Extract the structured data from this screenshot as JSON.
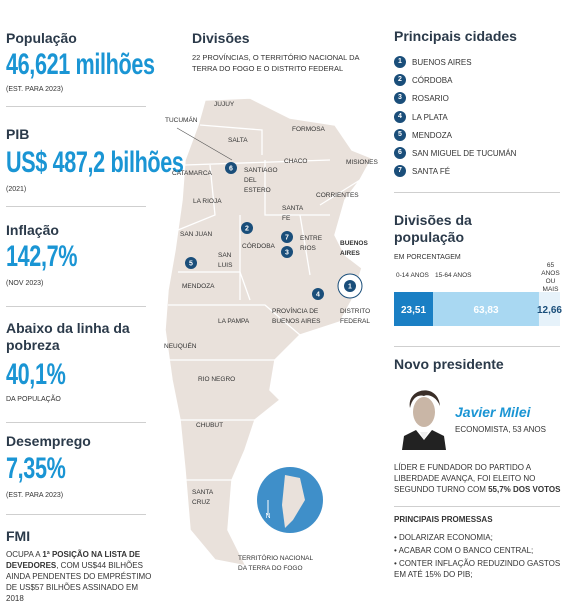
{
  "indicators": [
    {
      "label": "População",
      "value": "46,621 milhões",
      "note": "(EST. PARA 2023)"
    },
    {
      "label": "PIB",
      "value": "US$ 487,2 bilhões",
      "note": "(2021)"
    },
    {
      "label": "Inflação",
      "value": "142,7%",
      "note": "(NOV 2023)"
    },
    {
      "label": "Abaixo da linha da pobreza",
      "value": "40,1%",
      "note": "DA POPULAÇÃO"
    },
    {
      "label": "Desemprego",
      "value": "7,35%",
      "note": "(EST. PARA 2023)"
    }
  ],
  "fmi": {
    "title": "FMI",
    "text_before": "OCUPA A ",
    "text_bold": "1ª POSIÇÃO NA LISTA DE DEVEDORES",
    "text_after": ", COM US$44 BILHÕES AINDA PENDENTES DO EMPRÉSTIMO DE US$57 BILHÕES ASSINADO EM 2018"
  },
  "map": {
    "title": "Divisões",
    "subtitle": "22 PROVÍNCIAS, O TERRITÓRIO NACIONAL DA TERRA DO FOGO E O DISTRITO FEDERAL",
    "labels": [
      {
        "lines": [
          "JUJUY"
        ]
      },
      {
        "lines": [
          "TUCUMÁN"
        ]
      },
      {
        "lines": [
          "SALTA"
        ]
      },
      {
        "lines": [
          "FORMOSA"
        ]
      },
      {
        "lines": [
          "CHACO"
        ]
      },
      {
        "lines": [
          "MISIONES"
        ]
      },
      {
        "lines": [
          "CATAMARCA"
        ]
      },
      {
        "lines": [
          "SANTIAGO",
          "DEL",
          "ESTERO"
        ]
      },
      {
        "lines": [
          "CORRIENTES"
        ]
      },
      {
        "lines": [
          "LA RIOJA"
        ]
      },
      {
        "lines": [
          "SANTA",
          "FE"
        ]
      },
      {
        "lines": [
          "SAN JUAN"
        ]
      },
      {
        "lines": [
          "ENTRE",
          "RIOS"
        ]
      },
      {
        "lines": [
          "CÓRDOBA"
        ]
      },
      {
        "lines": [
          "SAN",
          "LUIS"
        ]
      },
      {
        "lines": [
          "BUENOS",
          "AIRES"
        ]
      },
      {
        "lines": [
          "MENDOZA"
        ]
      },
      {
        "lines": [
          "PROVÍNCIA DE",
          "BUENOS AIRES"
        ]
      },
      {
        "lines": [
          "DISTRITO",
          "FEDERAL"
        ]
      },
      {
        "lines": [
          "LA PAMPA"
        ]
      },
      {
        "lines": [
          "NEUQUÉN"
        ]
      },
      {
        "lines": [
          "RIO NEGRO"
        ]
      },
      {
        "lines": [
          "CHUBUT"
        ]
      },
      {
        "lines": [
          "SANTA",
          "CRUZ"
        ]
      },
      {
        "lines": [
          "TERRITÓRIO NACIONAL",
          "DA TERRA DO FOGO"
        ]
      }
    ],
    "compass": "N"
  },
  "cities": {
    "title": "Principais cidades",
    "items": [
      {
        "num": "1",
        "name": "BUENOS AIRES"
      },
      {
        "num": "2",
        "name": "CÓRDOBA"
      },
      {
        "num": "3",
        "name": "ROSARIO"
      },
      {
        "num": "4",
        "name": "LA PLATA"
      },
      {
        "num": "5",
        "name": "MENDOZA"
      },
      {
        "num": "6",
        "name": "SAN MIGUEL DE TUCUMÁN"
      },
      {
        "num": "7",
        "name": "SANTA FÉ"
      }
    ]
  },
  "population": {
    "title": "Divisões da população",
    "unit": "EM PORCENTAGEM",
    "groups": [
      {
        "name": "0-14 ANOS",
        "value": 23.51,
        "label": "23,51"
      },
      {
        "name": "15-64 ANOS",
        "value": 63.83,
        "label": "63,83"
      },
      {
        "name": "65 ANOS OU MAIS",
        "value": 12.66,
        "label": "12,66"
      }
    ]
  },
  "president": {
    "title": "Novo presidente",
    "name": "Javier Milei",
    "role": "ECONOMISTA, 53 ANOS",
    "bio_before": "LÍDER E FUNDADOR DO PARTIDO A LIBERDADE AVANÇA, FOI ELEITO NO SEGUNDO TURNO COM ",
    "bio_bold": "55,7% DOS VOTOS",
    "promises_title": "PRINCIPAIS PROMESSAS",
    "promises": [
      "• DOLARIZAR ECONOMIA;",
      "• ACABAR COM O BANCO CENTRAL;",
      "• CONTER INFLAÇÃO REDUZINDO GASTOS EM ATÉ 15% DO PIB;"
    ]
  }
}
